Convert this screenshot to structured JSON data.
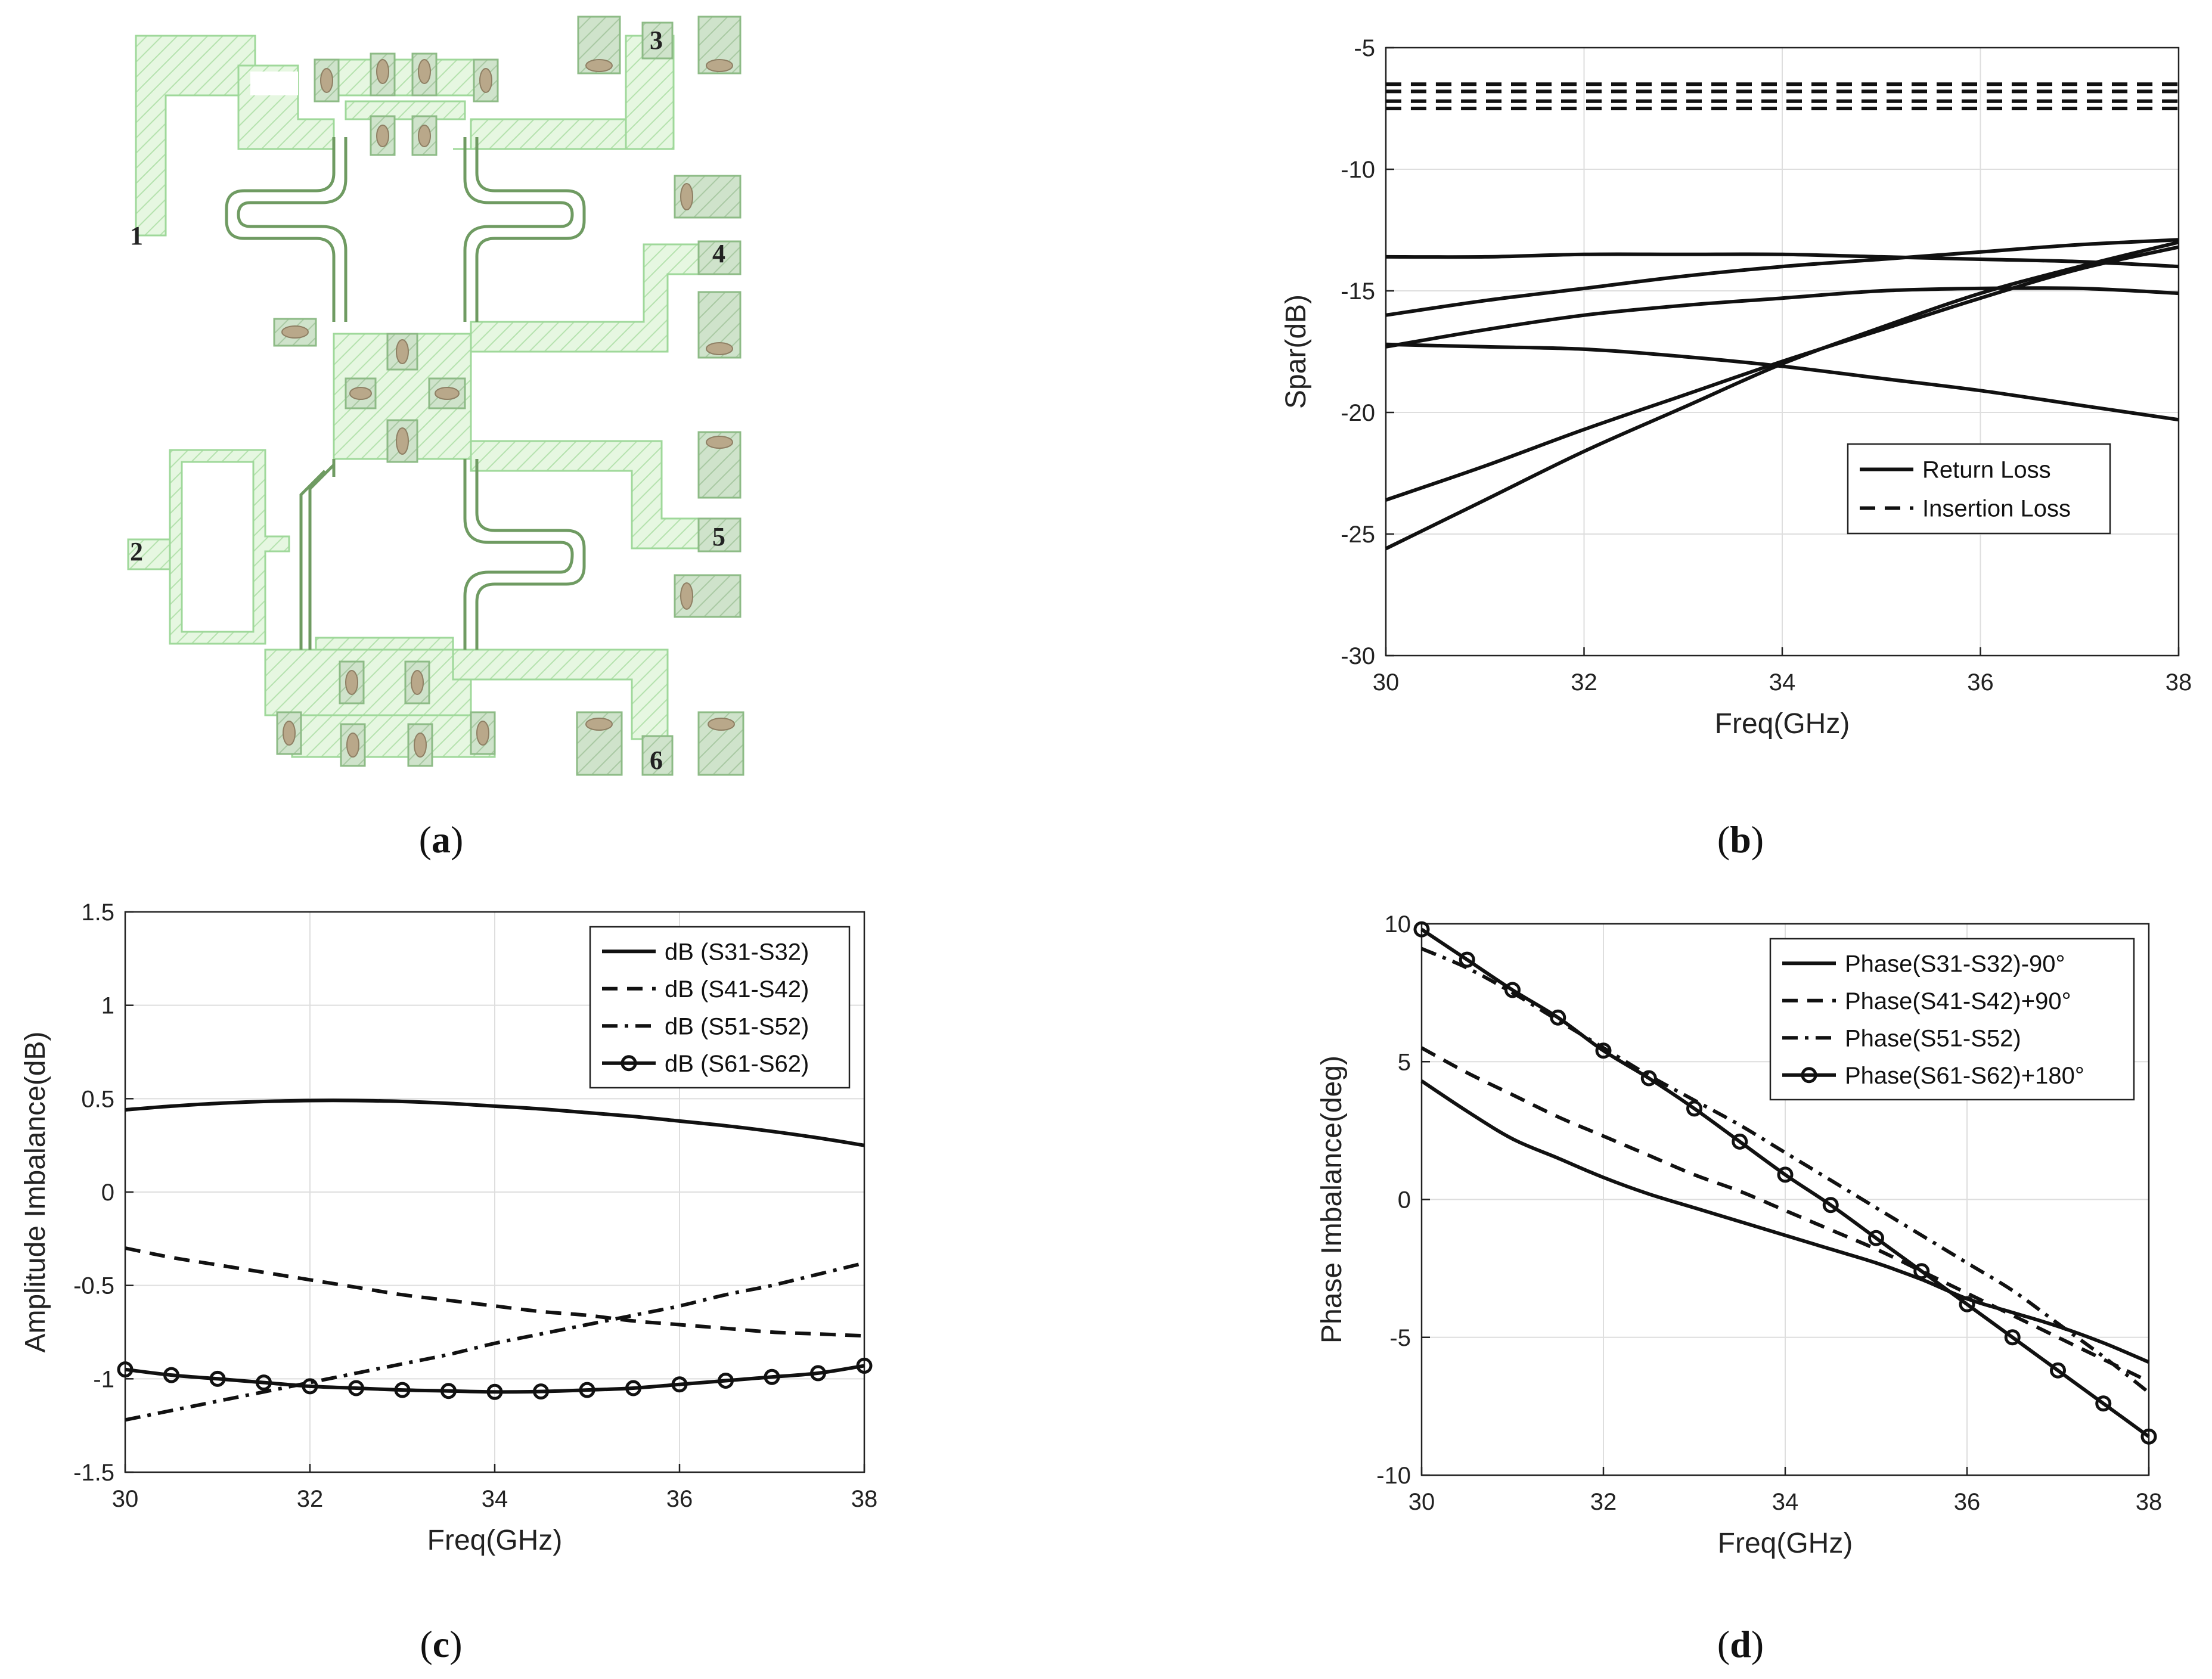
{
  "captions": {
    "a": {
      "open": "(",
      "letter": "a",
      "close": ")"
    },
    "b": {
      "open": "(",
      "letter": "b",
      "close": ")"
    },
    "c": {
      "open": "(",
      "letter": "c",
      "close": ")"
    },
    "d": {
      "open": "(",
      "letter": "d",
      "close": ")"
    }
  },
  "layout_panel": {
    "port_labels": [
      "1",
      "2",
      "3",
      "4",
      "5",
      "6"
    ],
    "colors": {
      "metal_fill": "#e6f7e1",
      "metal_edge": "#9fd89a",
      "pad_fill": "#c7dcc4",
      "via_fill": "#b9a88a",
      "coupler_line": "#6f9b62"
    }
  },
  "chart_data": [
    {
      "panel": "b",
      "type": "line",
      "xlabel": "Freq(GHz)",
      "ylabel": "Spar(dB)",
      "xlim": [
        30,
        38
      ],
      "ylim": [
        -30,
        -5
      ],
      "xticks": [
        30,
        32,
        34,
        36,
        38
      ],
      "yticks": [
        -5,
        -10,
        -15,
        -20,
        -25,
        -30
      ],
      "grid": true,
      "legend": {
        "position": "lower-right",
        "entries": [
          {
            "label": "Return Loss",
            "style": "solid"
          },
          {
            "label": "Insertion Loss",
            "style": "dashed"
          }
        ]
      },
      "x": [
        30,
        31,
        32,
        33,
        34,
        35,
        36,
        37,
        38
      ],
      "series": [
        {
          "name": "Insertion Loss",
          "style": "dashed",
          "values": [
            -6.5,
            -6.5,
            -6.5,
            -6.5,
            -6.5,
            -6.5,
            -6.5,
            -6.5,
            -6.5
          ]
        },
        {
          "name": "Insertion Loss",
          "style": "dashed",
          "values": [
            -6.8,
            -6.8,
            -6.8,
            -6.8,
            -6.8,
            -6.8,
            -6.8,
            -6.8,
            -6.8
          ]
        },
        {
          "name": "Insertion Loss",
          "style": "dashed",
          "values": [
            -7.2,
            -7.2,
            -7.2,
            -7.2,
            -7.2,
            -7.2,
            -7.2,
            -7.2,
            -7.2
          ]
        },
        {
          "name": "Insertion Loss",
          "style": "dashed",
          "values": [
            -7.5,
            -7.5,
            -7.5,
            -7.5,
            -7.5,
            -7.5,
            -7.5,
            -7.5,
            -7.5
          ]
        },
        {
          "name": "Return Loss",
          "style": "solid",
          "values": [
            -13.6,
            -13.6,
            -13.5,
            -13.5,
            -13.5,
            -13.6,
            -13.7,
            -13.8,
            -14.0
          ]
        },
        {
          "name": "Return Loss",
          "style": "solid",
          "values": [
            -16.0,
            -15.4,
            -14.9,
            -14.4,
            -14.0,
            -13.7,
            -13.4,
            -13.1,
            -12.9
          ]
        },
        {
          "name": "Return Loss",
          "style": "solid",
          "values": [
            -17.3,
            -16.6,
            -16.0,
            -15.6,
            -15.3,
            -15.0,
            -14.9,
            -14.9,
            -15.1
          ]
        },
        {
          "name": "Return Loss",
          "style": "solid",
          "values": [
            -17.2,
            -17.3,
            -17.4,
            -17.7,
            -18.1,
            -18.6,
            -19.1,
            -19.7,
            -20.3
          ]
        },
        {
          "name": "Return Loss",
          "style": "solid",
          "values": [
            -23.6,
            -22.2,
            -20.7,
            -19.3,
            -17.9,
            -16.6,
            -15.3,
            -14.1,
            -13.2
          ]
        },
        {
          "name": "Return Loss",
          "style": "solid",
          "values": [
            -25.6,
            -23.6,
            -21.6,
            -19.8,
            -18.0,
            -16.5,
            -15.1,
            -14.0,
            -13.0
          ]
        }
      ]
    },
    {
      "panel": "c",
      "type": "line",
      "xlabel": "Freq(GHz)",
      "ylabel": "Amplitude Imbalance(dB)",
      "xlim": [
        30,
        38
      ],
      "ylim": [
        -1.5,
        1.5
      ],
      "xticks": [
        30,
        32,
        34,
        36,
        38
      ],
      "yticks": [
        1.5,
        1,
        0.5,
        0,
        -0.5,
        -1,
        -1.5
      ],
      "ytick_labels": [
        "1.5",
        "1",
        "0.5",
        "0",
        "-0.5",
        "-1",
        "-1.5"
      ],
      "grid": true,
      "legend": {
        "position": "top-right"
      },
      "x": [
        30,
        30.5,
        31,
        31.5,
        32,
        32.5,
        33,
        33.5,
        34,
        34.5,
        35,
        35.5,
        36,
        36.5,
        37,
        37.5,
        38
      ],
      "series": [
        {
          "name": "dB (S31-S32)",
          "style": "solid",
          "values": [
            0.44,
            0.46,
            0.475,
            0.485,
            0.49,
            0.49,
            0.485,
            0.475,
            0.46,
            0.445,
            0.425,
            0.405,
            0.38,
            0.355,
            0.325,
            0.29,
            0.25
          ]
        },
        {
          "name": "dB (S41-S42)",
          "style": "dashed",
          "values": [
            -0.3,
            -0.35,
            -0.39,
            -0.43,
            -0.47,
            -0.51,
            -0.55,
            -0.58,
            -0.61,
            -0.64,
            -0.66,
            -0.69,
            -0.71,
            -0.73,
            -0.75,
            -0.76,
            -0.77
          ]
        },
        {
          "name": "dB (S51-S52)",
          "style": "dashdot",
          "values": [
            -1.22,
            -1.17,
            -1.12,
            -1.07,
            -1.02,
            -0.97,
            -0.92,
            -0.87,
            -0.81,
            -0.76,
            -0.71,
            -0.66,
            -0.61,
            -0.55,
            -0.5,
            -0.44,
            -0.38
          ]
        },
        {
          "name": "dB (S61-S62)",
          "style": "solid-circle",
          "values": [
            -0.95,
            -0.98,
            -1.0,
            -1.02,
            -1.04,
            -1.05,
            -1.06,
            -1.065,
            -1.07,
            -1.068,
            -1.06,
            -1.05,
            -1.03,
            -1.01,
            -0.99,
            -0.97,
            -0.93
          ]
        }
      ]
    },
    {
      "panel": "d",
      "type": "line",
      "xlabel": "Freq(GHz)",
      "ylabel": "Phase Imbalance(deg)",
      "xlim": [
        30,
        38
      ],
      "ylim": [
        -10,
        10
      ],
      "xticks": [
        30,
        32,
        34,
        36,
        38
      ],
      "yticks": [
        10,
        5,
        0,
        -5,
        -10
      ],
      "grid": true,
      "legend": {
        "position": "top-right"
      },
      "x": [
        30,
        30.5,
        31,
        31.5,
        32,
        32.5,
        33,
        33.5,
        34,
        34.5,
        35,
        35.5,
        36,
        36.5,
        37,
        37.5,
        38
      ],
      "series": [
        {
          "name": "Phase(S31-S32)-90°",
          "style": "solid",
          "values": [
            4.3,
            3.2,
            2.2,
            1.5,
            0.8,
            0.2,
            -0.3,
            -0.8,
            -1.3,
            -1.8,
            -2.3,
            -2.9,
            -3.6,
            -4.1,
            -4.6,
            -5.2,
            -5.9
          ]
        },
        {
          "name": "Phase(S41-S42)+90°",
          "style": "dashed",
          "values": [
            5.5,
            4.6,
            3.8,
            3.0,
            2.3,
            1.6,
            0.9,
            0.3,
            -0.4,
            -1.1,
            -1.8,
            -2.6,
            -3.4,
            -4.2,
            -5.0,
            -5.8,
            -6.6
          ]
        },
        {
          "name": "Phase(S51-S52)",
          "style": "dashdot",
          "values": [
            9.1,
            8.4,
            7.5,
            6.5,
            5.5,
            4.5,
            3.6,
            2.7,
            1.7,
            0.7,
            -0.3,
            -1.3,
            -2.3,
            -3.3,
            -4.5,
            -5.7,
            -7.0
          ]
        },
        {
          "name": "Phase(S61-S62)+180°",
          "style": "solid-circle",
          "values": [
            9.8,
            8.7,
            7.6,
            6.6,
            5.4,
            4.4,
            3.3,
            2.1,
            0.9,
            -0.2,
            -1.4,
            -2.6,
            -3.8,
            -5.0,
            -6.2,
            -7.4,
            -8.6
          ]
        }
      ]
    }
  ]
}
